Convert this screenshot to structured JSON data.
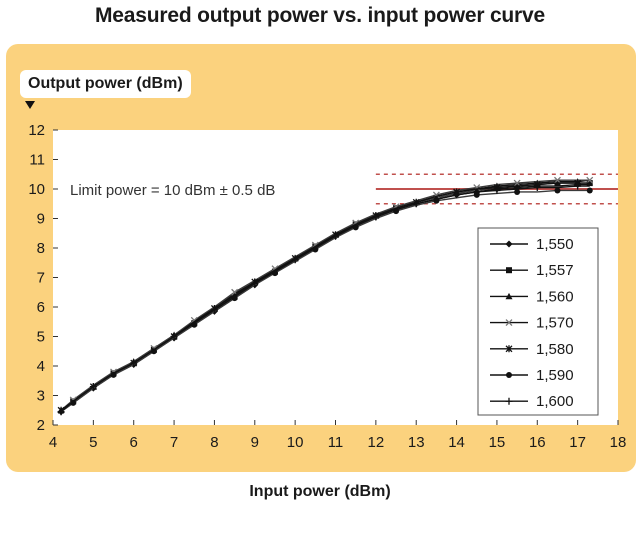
{
  "chart_data": {
    "type": "line",
    "title": "Measured output power vs. input power curve",
    "xlabel": "Input power (dBm)",
    "ylabel": "Output power (dBm)",
    "xlim": [
      4,
      18
    ],
    "ylim": [
      2,
      12
    ],
    "xticks": [
      "4",
      "5",
      "6",
      "7",
      "8",
      "9",
      "10",
      "11",
      "12",
      "13",
      "14",
      "15",
      "16",
      "17",
      "18"
    ],
    "yticks": [
      "2",
      "3",
      "4",
      "5",
      "6",
      "7",
      "8",
      "9",
      "10",
      "11",
      "12"
    ],
    "grid": false,
    "legend_position": "right",
    "annotation": "Limit power = 10 dBm ± 0.5 dB",
    "limit_lines": {
      "center": 10,
      "upper": 10.5,
      "lower": 9.5,
      "x_start": 12,
      "center_color": "#c0504d",
      "band_color": "#c0504d"
    },
    "x": [
      4.2,
      4.5,
      5,
      5.5,
      6,
      6.5,
      7,
      7.5,
      8,
      8.5,
      9,
      9.5,
      10,
      10.5,
      11,
      11.5,
      12,
      12.5,
      13,
      13.5,
      14,
      14.5,
      15,
      15.5,
      16,
      16.5,
      17,
      17.3
    ],
    "series": [
      {
        "name": "1,550",
        "marker": "diamond",
        "values": [
          2.45,
          2.75,
          3.25,
          3.7,
          4.05,
          4.5,
          4.95,
          5.4,
          5.85,
          6.3,
          6.75,
          7.2,
          7.6,
          8.0,
          8.4,
          8.75,
          9.05,
          9.3,
          9.5,
          9.65,
          9.8,
          9.9,
          10.0,
          10.05,
          10.1,
          10.1,
          10.15,
          10.15
        ]
      },
      {
        "name": "1,557",
        "marker": "square",
        "values": [
          2.45,
          2.8,
          3.3,
          3.75,
          4.1,
          4.55,
          5.0,
          5.45,
          5.9,
          6.35,
          6.8,
          7.2,
          7.6,
          8.05,
          8.45,
          8.8,
          9.1,
          9.35,
          9.55,
          9.7,
          9.85,
          9.95,
          10.05,
          10.1,
          10.15,
          10.2,
          10.2,
          10.2
        ]
      },
      {
        "name": "1,560",
        "marker": "triangle",
        "values": [
          2.5,
          2.8,
          3.3,
          3.75,
          4.15,
          4.6,
          5.05,
          5.5,
          5.95,
          6.45,
          6.85,
          7.25,
          7.65,
          8.05,
          8.45,
          8.8,
          9.1,
          9.35,
          9.55,
          9.75,
          9.9,
          10.0,
          10.1,
          10.15,
          10.2,
          10.25,
          10.25,
          10.3
        ]
      },
      {
        "name": "1,570",
        "marker": "x",
        "values": [
          2.5,
          2.85,
          3.35,
          3.8,
          4.15,
          4.6,
          5.05,
          5.55,
          6.0,
          6.5,
          6.9,
          7.3,
          7.7,
          8.1,
          8.5,
          8.85,
          9.15,
          9.4,
          9.6,
          9.8,
          9.95,
          10.05,
          10.15,
          10.2,
          10.25,
          10.3,
          10.3,
          10.3
        ]
      },
      {
        "name": "1,580",
        "marker": "star",
        "values": [
          2.5,
          2.8,
          3.3,
          3.75,
          4.1,
          4.55,
          5.0,
          5.5,
          5.95,
          6.4,
          6.85,
          7.25,
          7.65,
          8.05,
          8.45,
          8.8,
          9.1,
          9.35,
          9.55,
          9.75,
          9.9,
          10.0,
          10.05,
          10.1,
          10.15,
          10.2,
          10.2,
          10.2
        ]
      },
      {
        "name": "1,590",
        "marker": "circle",
        "values": [
          2.45,
          2.75,
          3.25,
          3.7,
          4.05,
          4.5,
          4.95,
          5.4,
          5.85,
          6.3,
          6.75,
          7.15,
          7.55,
          7.95,
          8.35,
          8.7,
          9.0,
          9.25,
          9.45,
          9.6,
          9.7,
          9.8,
          9.85,
          9.9,
          9.9,
          9.95,
          9.95,
          9.95
        ]
      },
      {
        "name": "1,600",
        "marker": "plus",
        "values": [
          2.45,
          2.8,
          3.3,
          3.75,
          4.1,
          4.55,
          5.0,
          5.45,
          5.9,
          6.35,
          6.8,
          7.2,
          7.6,
          8.0,
          8.4,
          8.75,
          9.05,
          9.3,
          9.5,
          9.65,
          9.8,
          9.9,
          9.95,
          10.0,
          10.05,
          10.05,
          10.1,
          10.1
        ]
      }
    ]
  }
}
